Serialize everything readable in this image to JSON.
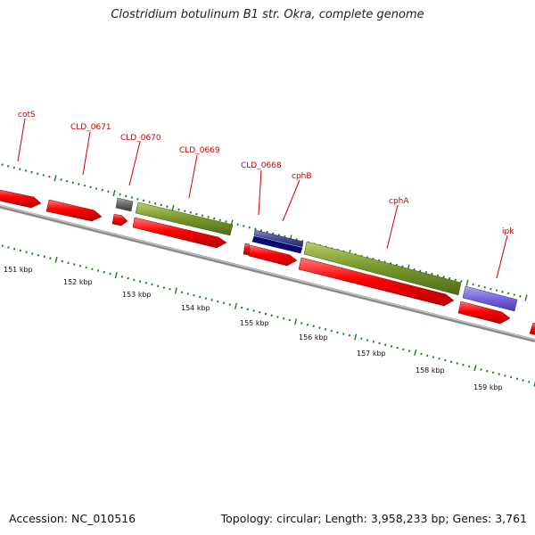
{
  "title": "Clostridium botulinum B1 str. Okra, complete genome",
  "footer": {
    "accession": "Accession: NC_010516",
    "summary": "Topology: circular; Length: 3,958,233 bp; Genes: 3,761"
  },
  "colors": {
    "gene_forward": "#ff0000",
    "cds_feature": "#7a9a2e",
    "gene_other": "#666666",
    "rna_dark": "#0a0a7a",
    "feature_blue": "#7766dd",
    "label": "#cc0000",
    "tick": "#1a7a1a",
    "backbone": "#8a8a8a"
  },
  "ruler": {
    "labels": [
      "151 kbp",
      "152 kbp",
      "153 kbp",
      "154 kbp",
      "155 kbp",
      "156 kbp",
      "157 kbp",
      "158 kbp",
      "159 kbp"
    ]
  },
  "gene_labels": [
    "cotS",
    "CLD_0671",
    "CLD_0670",
    "CLD_0669",
    "CLD_0668",
    "cphB",
    "cphA",
    "ipk"
  ]
}
